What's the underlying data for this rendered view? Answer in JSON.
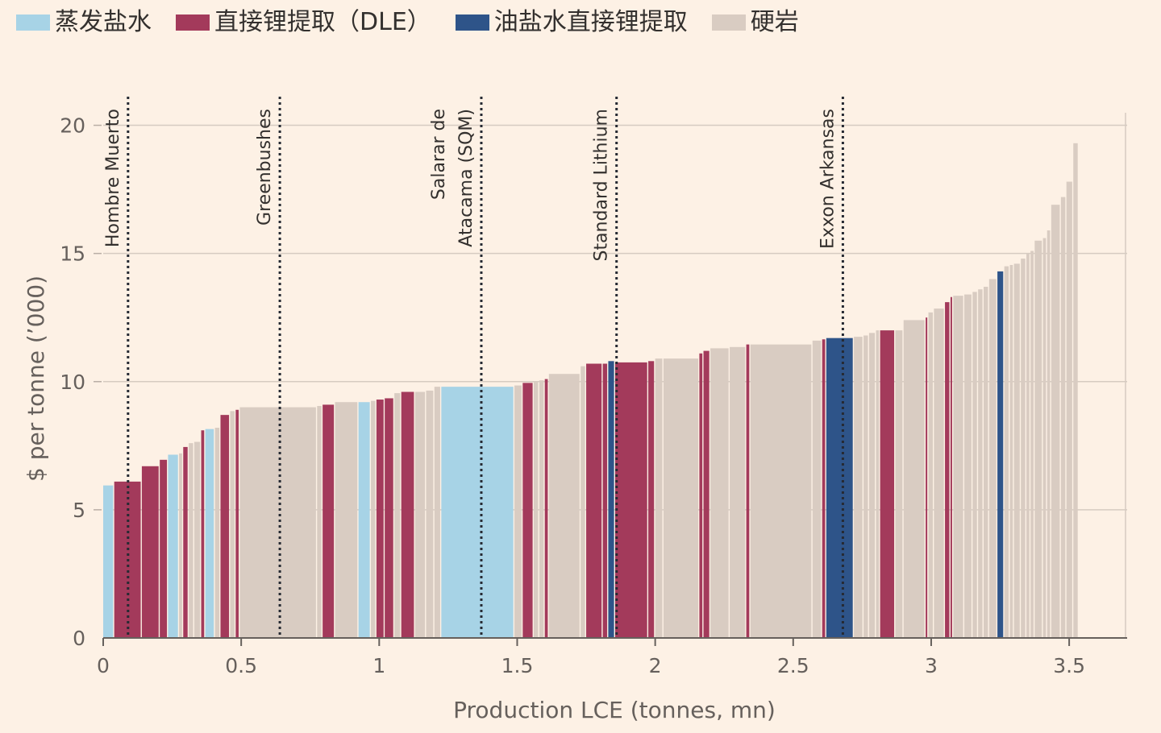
{
  "legend": [
    {
      "key": "evap",
      "label": "蒸发盐水",
      "color": "#a7d3e6"
    },
    {
      "key": "dle",
      "label": "直接锂提取（DLE）",
      "color": "#a33a5b"
    },
    {
      "key": "oil",
      "label": "油盐水直接锂提取",
      "color": "#2e5489"
    },
    {
      "key": "hard",
      "label": "硬岩",
      "color": "#d9ccc2"
    }
  ],
  "chart_data": {
    "type": "bar",
    "variant": "cost-curve",
    "xlabel": "Production LCE (tonnes, mn)",
    "ylabel": "$ per tonne (’000)",
    "xlim": [
      0,
      3.71
    ],
    "ylim": [
      0,
      20.3
    ],
    "xticks": [
      {
        "v": 0,
        "label": "0"
      },
      {
        "v": 0.5,
        "label": "0.5"
      },
      {
        "v": 1,
        "label": "1"
      },
      {
        "v": 1.5,
        "label": "1.5"
      },
      {
        "v": 2,
        "label": "2"
      },
      {
        "v": 2.5,
        "label": "2.5"
      },
      {
        "v": 3,
        "label": "3"
      },
      {
        "v": 3.5,
        "label": "3.5"
      }
    ],
    "yticks": [
      {
        "v": 0,
        "label": "0"
      },
      {
        "v": 5,
        "label": "5"
      },
      {
        "v": 10,
        "label": "10"
      },
      {
        "v": 15,
        "label": "15"
      },
      {
        "v": 20,
        "label": "20"
      }
    ],
    "grid": true,
    "colors": {
      "evap": "#a7d3e6",
      "dle": "#a33a5b",
      "oil": "#2e5489",
      "hard": "#d9ccc2"
    },
    "annotations": [
      {
        "x": 0.09,
        "lines": [
          "Hombre Muerto"
        ]
      },
      {
        "x": 0.64,
        "lines": [
          "Greenbushes"
        ]
      },
      {
        "x": 1.37,
        "lines": [
          "Salarar de",
          "Atacama (SQM)"
        ]
      },
      {
        "x": 1.86,
        "lines": [
          "Standard Lithium"
        ]
      },
      {
        "x": 2.68,
        "lines": [
          "Exxon Arkansas"
        ]
      }
    ],
    "bars": [
      {
        "x0": 0.0,
        "x1": 0.04,
        "y": 5.95,
        "t": "evap"
      },
      {
        "x0": 0.04,
        "x1": 0.14,
        "y": 6.1,
        "t": "dle"
      },
      {
        "x0": 0.14,
        "x1": 0.205,
        "y": 6.7,
        "t": "dle"
      },
      {
        "x0": 0.205,
        "x1": 0.235,
        "y": 6.95,
        "t": "dle"
      },
      {
        "x0": 0.235,
        "x1": 0.275,
        "y": 7.15,
        "t": "evap"
      },
      {
        "x0": 0.275,
        "x1": 0.29,
        "y": 7.2,
        "t": "hard"
      },
      {
        "x0": 0.29,
        "x1": 0.31,
        "y": 7.45,
        "t": "dle"
      },
      {
        "x0": 0.31,
        "x1": 0.33,
        "y": 7.6,
        "t": "hard"
      },
      {
        "x0": 0.33,
        "x1": 0.355,
        "y": 7.65,
        "t": "hard"
      },
      {
        "x0": 0.355,
        "x1": 0.37,
        "y": 8.1,
        "t": "dle"
      },
      {
        "x0": 0.37,
        "x1": 0.405,
        "y": 8.15,
        "t": "evap"
      },
      {
        "x0": 0.405,
        "x1": 0.425,
        "y": 8.2,
        "t": "hard"
      },
      {
        "x0": 0.425,
        "x1": 0.46,
        "y": 8.7,
        "t": "dle"
      },
      {
        "x0": 0.46,
        "x1": 0.48,
        "y": 8.85,
        "t": "hard"
      },
      {
        "x0": 0.48,
        "x1": 0.495,
        "y": 8.9,
        "t": "dle"
      },
      {
        "x0": 0.495,
        "x1": 0.775,
        "y": 9.0,
        "t": "hard"
      },
      {
        "x0": 0.775,
        "x1": 0.795,
        "y": 9.05,
        "t": "hard"
      },
      {
        "x0": 0.795,
        "x1": 0.84,
        "y": 9.1,
        "t": "dle"
      },
      {
        "x0": 0.84,
        "x1": 0.925,
        "y": 9.2,
        "t": "hard"
      },
      {
        "x0": 0.925,
        "x1": 0.97,
        "y": 9.2,
        "t": "evap"
      },
      {
        "x0": 0.97,
        "x1": 0.99,
        "y": 9.25,
        "t": "hard"
      },
      {
        "x0": 0.99,
        "x1": 1.02,
        "y": 9.3,
        "t": "dle"
      },
      {
        "x0": 1.02,
        "x1": 1.055,
        "y": 9.35,
        "t": "dle"
      },
      {
        "x0": 1.055,
        "x1": 1.08,
        "y": 9.55,
        "t": "hard"
      },
      {
        "x0": 1.08,
        "x1": 1.13,
        "y": 9.6,
        "t": "dle"
      },
      {
        "x0": 1.13,
        "x1": 1.17,
        "y": 9.6,
        "t": "hard"
      },
      {
        "x0": 1.17,
        "x1": 1.2,
        "y": 9.65,
        "t": "hard"
      },
      {
        "x0": 1.2,
        "x1": 1.225,
        "y": 9.8,
        "t": "hard"
      },
      {
        "x0": 1.225,
        "x1": 1.49,
        "y": 9.8,
        "t": "evap"
      },
      {
        "x0": 1.49,
        "x1": 1.52,
        "y": 9.85,
        "t": "hard"
      },
      {
        "x0": 1.52,
        "x1": 1.56,
        "y": 9.95,
        "t": "dle"
      },
      {
        "x0": 1.56,
        "x1": 1.58,
        "y": 10.0,
        "t": "hard"
      },
      {
        "x0": 1.58,
        "x1": 1.6,
        "y": 10.05,
        "t": "hard"
      },
      {
        "x0": 1.6,
        "x1": 1.615,
        "y": 10.1,
        "t": "dle"
      },
      {
        "x0": 1.615,
        "x1": 1.73,
        "y": 10.3,
        "t": "hard"
      },
      {
        "x0": 1.73,
        "x1": 1.75,
        "y": 10.6,
        "t": "hard"
      },
      {
        "x0": 1.75,
        "x1": 1.81,
        "y": 10.7,
        "t": "dle"
      },
      {
        "x0": 1.81,
        "x1": 1.83,
        "y": 10.7,
        "t": "dle"
      },
      {
        "x0": 1.83,
        "x1": 1.855,
        "y": 10.8,
        "t": "oil"
      },
      {
        "x0": 1.855,
        "x1": 1.975,
        "y": 10.75,
        "t": "dle"
      },
      {
        "x0": 1.975,
        "x1": 2.0,
        "y": 10.8,
        "t": "dle"
      },
      {
        "x0": 2.0,
        "x1": 2.03,
        "y": 10.9,
        "t": "hard"
      },
      {
        "x0": 2.03,
        "x1": 2.16,
        "y": 10.9,
        "t": "hard"
      },
      {
        "x0": 2.16,
        "x1": 2.175,
        "y": 11.1,
        "t": "dle"
      },
      {
        "x0": 2.175,
        "x1": 2.2,
        "y": 11.2,
        "t": "dle"
      },
      {
        "x0": 2.2,
        "x1": 2.27,
        "y": 11.3,
        "t": "hard"
      },
      {
        "x0": 2.27,
        "x1": 2.33,
        "y": 11.35,
        "t": "hard"
      },
      {
        "x0": 2.33,
        "x1": 2.345,
        "y": 11.45,
        "t": "dle"
      },
      {
        "x0": 2.345,
        "x1": 2.57,
        "y": 11.45,
        "t": "hard"
      },
      {
        "x0": 2.57,
        "x1": 2.605,
        "y": 11.6,
        "t": "hard"
      },
      {
        "x0": 2.605,
        "x1": 2.62,
        "y": 11.65,
        "t": "dle"
      },
      {
        "x0": 2.62,
        "x1": 2.72,
        "y": 11.7,
        "t": "oil"
      },
      {
        "x0": 2.72,
        "x1": 2.755,
        "y": 11.75,
        "t": "hard"
      },
      {
        "x0": 2.755,
        "x1": 2.775,
        "y": 11.8,
        "t": "hard"
      },
      {
        "x0": 2.775,
        "x1": 2.8,
        "y": 11.9,
        "t": "hard"
      },
      {
        "x0": 2.8,
        "x1": 2.815,
        "y": 12.0,
        "t": "hard"
      },
      {
        "x0": 2.815,
        "x1": 2.87,
        "y": 12.0,
        "t": "dle"
      },
      {
        "x0": 2.87,
        "x1": 2.9,
        "y": 12.0,
        "t": "hard"
      },
      {
        "x0": 2.9,
        "x1": 2.98,
        "y": 12.4,
        "t": "hard"
      },
      {
        "x0": 2.98,
        "x1": 2.99,
        "y": 12.5,
        "t": "dle"
      },
      {
        "x0": 2.99,
        "x1": 3.01,
        "y": 12.7,
        "t": "hard"
      },
      {
        "x0": 3.01,
        "x1": 3.05,
        "y": 12.85,
        "t": "hard"
      },
      {
        "x0": 3.05,
        "x1": 3.07,
        "y": 13.1,
        "t": "dle"
      },
      {
        "x0": 3.07,
        "x1": 3.08,
        "y": 13.3,
        "t": "dle"
      },
      {
        "x0": 3.08,
        "x1": 3.12,
        "y": 13.35,
        "t": "hard"
      },
      {
        "x0": 3.12,
        "x1": 3.15,
        "y": 13.4,
        "t": "hard"
      },
      {
        "x0": 3.15,
        "x1": 3.17,
        "y": 13.5,
        "t": "hard"
      },
      {
        "x0": 3.17,
        "x1": 3.19,
        "y": 13.6,
        "t": "hard"
      },
      {
        "x0": 3.19,
        "x1": 3.21,
        "y": 13.7,
        "t": "hard"
      },
      {
        "x0": 3.21,
        "x1": 3.24,
        "y": 14.0,
        "t": "hard"
      },
      {
        "x0": 3.24,
        "x1": 3.265,
        "y": 14.3,
        "t": "oil"
      },
      {
        "x0": 3.265,
        "x1": 3.285,
        "y": 14.5,
        "t": "hard"
      },
      {
        "x0": 3.285,
        "x1": 3.3,
        "y": 14.55,
        "t": "hard"
      },
      {
        "x0": 3.3,
        "x1": 3.325,
        "y": 14.6,
        "t": "hard"
      },
      {
        "x0": 3.325,
        "x1": 3.345,
        "y": 14.8,
        "t": "hard"
      },
      {
        "x0": 3.345,
        "x1": 3.36,
        "y": 15.0,
        "t": "hard"
      },
      {
        "x0": 3.36,
        "x1": 3.375,
        "y": 15.1,
        "t": "hard"
      },
      {
        "x0": 3.375,
        "x1": 3.405,
        "y": 15.5,
        "t": "hard"
      },
      {
        "x0": 3.405,
        "x1": 3.42,
        "y": 15.6,
        "t": "hard"
      },
      {
        "x0": 3.42,
        "x1": 3.435,
        "y": 15.9,
        "t": "hard"
      },
      {
        "x0": 3.435,
        "x1": 3.47,
        "y": 16.9,
        "t": "hard"
      },
      {
        "x0": 3.47,
        "x1": 3.49,
        "y": 17.2,
        "t": "hard"
      },
      {
        "x0": 3.49,
        "x1": 3.515,
        "y": 17.8,
        "t": "hard"
      },
      {
        "x0": 3.515,
        "x1": 3.535,
        "y": 19.3,
        "t": "hard"
      }
    ]
  }
}
